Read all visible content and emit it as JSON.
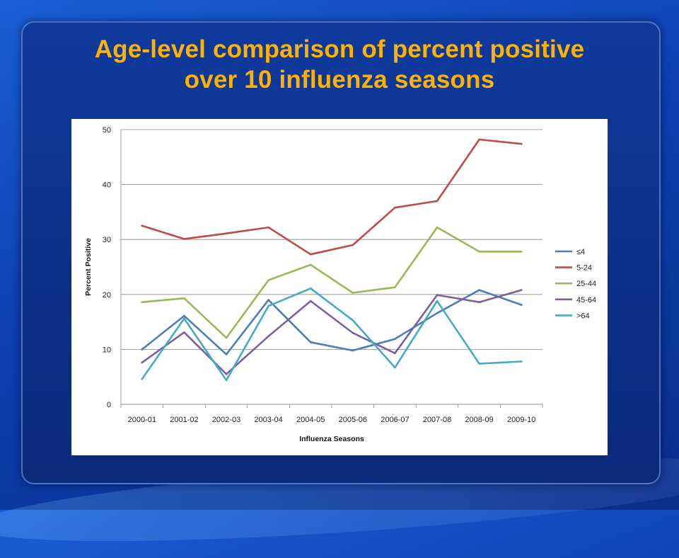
{
  "slide": {
    "title_line1": "Age-level comparison of percent positive",
    "title_line2": "over 10 influenza seasons"
  },
  "chart_data": {
    "type": "line",
    "title": "",
    "xlabel": "Influenza Seasons",
    "ylabel": "Percent Positive",
    "ylim": [
      0,
      50
    ],
    "yticks": [
      0,
      10,
      20,
      30,
      40,
      50
    ],
    "grid": "horizontal",
    "legend_position": "right",
    "categories": [
      "2000-01",
      "2001-02",
      "2002-03",
      "2003-04",
      "2004-05",
      "2005-06",
      "2006-07",
      "2007-08",
      "2008-09",
      "2009-10"
    ],
    "series": [
      {
        "name": "≤4",
        "color": "#4a7ebb",
        "values": [
          10.0,
          16.1,
          9.1,
          19.0,
          11.3,
          9.8,
          11.9,
          16.6,
          20.8,
          18.1
        ]
      },
      {
        "name": "5-24",
        "color": "#be4b48",
        "values": [
          32.5,
          30.1,
          31.1,
          32.2,
          27.3,
          29.0,
          35.8,
          37.0,
          48.2,
          47.4
        ]
      },
      {
        "name": "25-44",
        "color": "#98b954",
        "values": [
          18.6,
          19.3,
          12.1,
          22.6,
          25.4,
          20.3,
          21.3,
          32.2,
          27.8,
          27.8
        ]
      },
      {
        "name": "45-64",
        "color": "#7d5fa0",
        "values": [
          7.6,
          13.1,
          5.5,
          12.4,
          18.8,
          13.0,
          9.3,
          19.9,
          18.6,
          20.8
        ]
      },
      {
        "name": ">64",
        "color": "#46aac4",
        "values": [
          4.6,
          15.6,
          4.4,
          17.9,
          21.1,
          15.3,
          6.7,
          18.8,
          7.4,
          7.8
        ]
      }
    ]
  }
}
